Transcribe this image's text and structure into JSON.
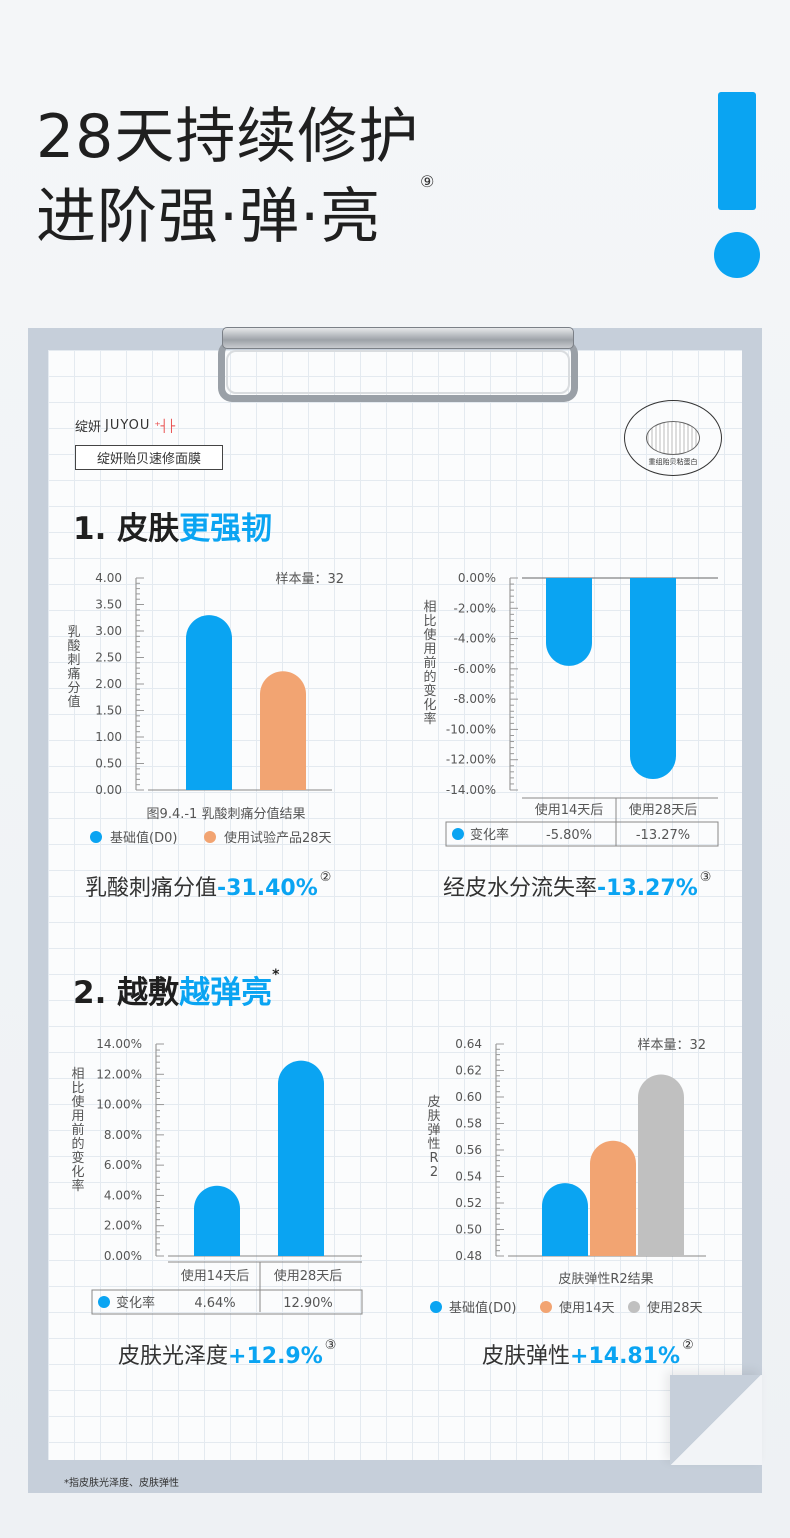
{
  "hero": {
    "line1": "28天持续修护",
    "line2": "进阶强·弹·亮",
    "note": "⑨"
  },
  "brand": {
    "name_cn": "绽妍",
    "name_latin": "JUYOU",
    "mark": "⁺┤├",
    "product": "绽妍贻贝速修面膜"
  },
  "seal": {
    "ring_text": "ADHESIVE PROTEIN REPAIR SOLUTION · MUSSEL",
    "center_text": "重组贻贝粘蛋白"
  },
  "section1": {
    "prefix": "1. 皮肤",
    "accent": "更强韧"
  },
  "section2": {
    "prefix": "2. 越敷",
    "accent": "越弹亮",
    "mark": "*"
  },
  "metrics": [
    {
      "label": "乳酸刺痛分值",
      "value": "-31.40%",
      "note": "②"
    },
    {
      "label": "经皮水分流失率",
      "value": "-13.27%",
      "note": "③"
    },
    {
      "label": "皮肤光泽度",
      "value": "+12.9%",
      "note": "③"
    },
    {
      "label": "皮肤弹性",
      "value": "+14.81%",
      "note": "②"
    }
  ],
  "footnote": "*指皮肤光泽度、皮肤弹性",
  "colors": {
    "blue": "#0aa4f2",
    "orange": "#f2a472",
    "gray": "#c0c0c0"
  },
  "chart_data": [
    {
      "type": "bar",
      "ylabel": "乳酸刺痛分值",
      "yticks": [
        "4.00",
        "3.50",
        "3.00",
        "2.50",
        "2.00",
        "1.50",
        "1.00",
        "0.50",
        "0.00"
      ],
      "ylim": [
        0,
        4
      ],
      "caption": "图9.4.-1 乳酸刺痛分值结果",
      "sample": "样本量：32",
      "series": [
        {
          "name": "基础值(D0)",
          "value": 3.3,
          "color": "#0aa4f2"
        },
        {
          "name": "使用试验产品28天",
          "value": 2.24,
          "color": "#f2a472"
        }
      ]
    },
    {
      "type": "bar",
      "ylabel": "相比使用前的变化率",
      "yticks": [
        "0.00%",
        "-2.00%",
        "-4.00%",
        "-6.00%",
        "-8.00%",
        "-10.00%",
        "-12.00%",
        "-14.00%"
      ],
      "ylim": [
        -14,
        0
      ],
      "categories": [
        "使用14天后",
        "使用28天后"
      ],
      "values": [
        -5.8,
        -13.27
      ],
      "row_label": "变化率",
      "row_values": [
        "-5.80%",
        "-13.27%"
      ]
    },
    {
      "type": "bar",
      "ylabel": "相比使用前的变化率",
      "yticks": [
        "14.00%",
        "12.00%",
        "10.00%",
        "8.00%",
        "6.00%",
        "4.00%",
        "2.00%",
        "0.00%"
      ],
      "ylim": [
        0,
        14
      ],
      "categories": [
        "使用14天后",
        "使用28天后"
      ],
      "values": [
        4.64,
        12.9
      ],
      "row_label": "变化率",
      "row_values": [
        "4.64%",
        "12.90%"
      ]
    },
    {
      "type": "bar",
      "ylabel": "皮肤弹性R2",
      "yticks": [
        "0.64",
        "0.62",
        "0.60",
        "0.58",
        "0.56",
        "0.54",
        "0.52",
        "0.50",
        "0.48"
      ],
      "ylim": [
        0.48,
        0.64
      ],
      "caption": "皮肤弹性R2结果",
      "sample": "样本量：32",
      "series": [
        {
          "name": "基础值(D0)",
          "value": 0.535,
          "color": "#0aa4f2"
        },
        {
          "name": "使用14天",
          "value": 0.567,
          "color": "#f2a472"
        },
        {
          "name": "使用28天",
          "value": 0.617,
          "color": "#c0c0c0"
        }
      ]
    }
  ]
}
